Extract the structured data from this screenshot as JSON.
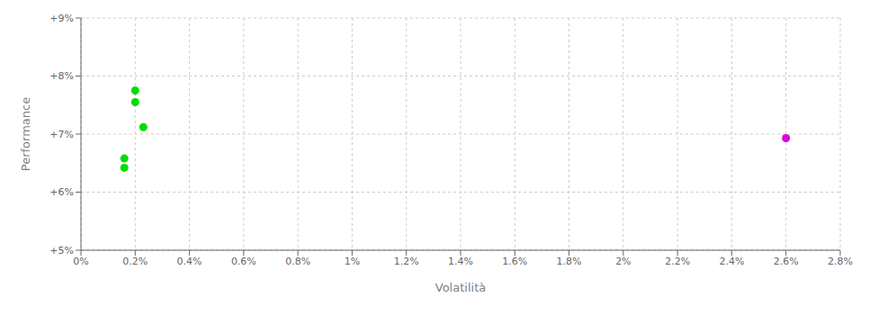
{
  "chart_data": {
    "type": "scatter",
    "xlabel": "Volatilità",
    "ylabel": "Performance",
    "xlim": [
      0.0,
      0.028
    ],
    "ylim": [
      0.05,
      0.09
    ],
    "xticks": [
      {
        "value": 0.0,
        "label": "0%"
      },
      {
        "value": 0.002,
        "label": "0.2%"
      },
      {
        "value": 0.004,
        "label": "0.4%"
      },
      {
        "value": 0.006,
        "label": "0.6%"
      },
      {
        "value": 0.008,
        "label": "0.8%"
      },
      {
        "value": 0.01,
        "label": "1%"
      },
      {
        "value": 0.012,
        "label": "1.2%"
      },
      {
        "value": 0.014,
        "label": "1.4%"
      },
      {
        "value": 0.016,
        "label": "1.6%"
      },
      {
        "value": 0.018,
        "label": "1.8%"
      },
      {
        "value": 0.02,
        "label": "2%"
      },
      {
        "value": 0.022,
        "label": "2.2%"
      },
      {
        "value": 0.024,
        "label": "2.4%"
      },
      {
        "value": 0.026,
        "label": "2.6%"
      },
      {
        "value": 0.028,
        "label": "2.8%"
      }
    ],
    "yticks": [
      {
        "value": 0.05,
        "label": "+5%"
      },
      {
        "value": 0.06,
        "label": "+6%"
      },
      {
        "value": 0.07,
        "label": "+7%"
      },
      {
        "value": 0.08,
        "label": "+8%"
      },
      {
        "value": 0.09,
        "label": "+9%"
      }
    ],
    "grid": true,
    "series": [
      {
        "color": "#00dd00",
        "x": [
          0.002,
          0.002,
          0.0023,
          0.0016,
          0.0016
        ],
        "values": [
          0.0775,
          0.0755,
          0.0712,
          0.0658,
          0.0642
        ]
      },
      {
        "color": "#dd00dd",
        "x": [
          0.026
        ],
        "values": [
          0.0693
        ]
      }
    ]
  }
}
